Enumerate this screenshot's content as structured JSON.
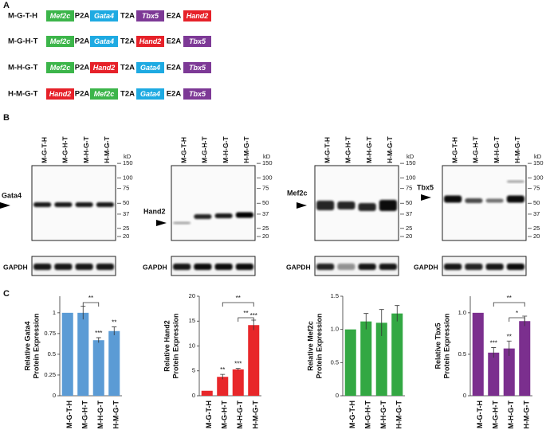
{
  "panel_labels": {
    "a": "A",
    "b": "B",
    "c": "C"
  },
  "constructs": {
    "gene_colors": {
      "Mef2c": "#3cb54a",
      "Gata4": "#1eaae2",
      "Hand2": "#e62129",
      "Tbx5": "#7d3996"
    },
    "linkers": [
      "P2A",
      "T2A",
      "E2A"
    ],
    "rows": [
      {
        "name": "M-G-T-H",
        "genes": [
          "Mef2c",
          "Gata4",
          "Tbx5",
          "Hand2"
        ]
      },
      {
        "name": "M-G-H-T",
        "genes": [
          "Mef2c",
          "Gata4",
          "Hand2",
          "Tbx5"
        ]
      },
      {
        "name": "M-H-G-T",
        "genes": [
          "Mef2c",
          "Hand2",
          "Gata4",
          "Tbx5"
        ]
      },
      {
        "name": "H-M-G-T",
        "genes": [
          "Hand2",
          "Mef2c",
          "Gata4",
          "Tbx5"
        ]
      }
    ]
  },
  "blots": {
    "lanes": [
      "M-G-T-H",
      "M-G-H-T",
      "M-H-G-T",
      "H-M-G-T"
    ],
    "unit": "kD",
    "loading_control": "GAPDH",
    "panels": [
      {
        "protein": "Gata4",
        "markers": [
          150,
          100,
          75,
          50,
          37,
          25,
          20
        ]
      },
      {
        "protein": "Hand2",
        "markers": [
          150,
          100,
          75,
          50,
          37,
          25,
          20
        ]
      },
      {
        "protein": "Mef2c",
        "markers": [
          150,
          100,
          75,
          50,
          37,
          25,
          20
        ]
      },
      {
        "protein": "Tbx5",
        "markers": [
          150,
          100,
          75,
          50,
          37,
          25,
          20
        ]
      }
    ]
  },
  "chart_data": [
    {
      "type": "bar",
      "y_label": [
        "Relative Gata4",
        "Protein Expression"
      ],
      "categories": [
        "M-G-T-H",
        "M-G-H-T",
        "M-H-G-T",
        "H-M-G-T"
      ],
      "values": [
        1.0,
        1.0,
        0.67,
        0.78
      ],
      "errors": [
        null,
        0.08,
        0.03,
        0.05
      ],
      "significance": [
        null,
        null,
        "***",
        "**"
      ],
      "comparisons": [
        {
          "between": [
            "M-G-H-T",
            "M-H-G-T"
          ],
          "label": "**"
        }
      ],
      "color": "#5b9bd5",
      "ylim": [
        0,
        1.2
      ],
      "yticks": [
        0,
        0.25,
        0.5,
        0.75,
        1
      ]
    },
    {
      "type": "bar",
      "y_label": [
        "Relative Hand2",
        "Protein Expression"
      ],
      "categories": [
        "M-G-T-H",
        "M-G-H-T",
        "M-H-G-T",
        "H-M-G-T"
      ],
      "values": [
        1.0,
        3.8,
        5.3,
        14.2
      ],
      "errors": [
        null,
        0.5,
        0.2,
        1.0
      ],
      "significance": [
        null,
        "**",
        "***",
        "***"
      ],
      "comparisons": [
        {
          "between": [
            "M-H-G-T",
            "H-M-G-T"
          ],
          "label": "**"
        },
        {
          "between": [
            "M-G-H-T",
            "H-M-G-T"
          ],
          "label": "**"
        }
      ],
      "color": "#e8272a",
      "ylim": [
        0,
        20
      ],
      "yticks": [
        0,
        5,
        10,
        15,
        20
      ]
    },
    {
      "type": "bar",
      "y_label": [
        "Relative Mef2c",
        "Protein Expression"
      ],
      "categories": [
        "M-G-T-H",
        "M-G-H-T",
        "M-H-G-T",
        "H-M-G-T"
      ],
      "values": [
        1.0,
        1.12,
        1.1,
        1.24
      ],
      "errors": [
        null,
        0.12,
        0.2,
        0.12
      ],
      "significance": [
        null,
        null,
        null,
        null
      ],
      "comparisons": [],
      "color": "#33a843",
      "ylim": [
        0,
        1.5
      ],
      "yticks": [
        0,
        0.5,
        {
          "value": 1,
          "label": "1.0"
        },
        1.5
      ]
    },
    {
      "type": "bar",
      "y_label": [
        "Relative Tbx5",
        "Protein Expression"
      ],
      "categories": [
        "M-G-T-H",
        "M-G-H-T",
        "M-H-G-T",
        "H-M-G-T"
      ],
      "values": [
        1.0,
        0.52,
        0.57,
        0.9
      ],
      "errors": [
        null,
        0.06,
        0.09,
        0.06
      ],
      "significance": [
        null,
        "***",
        "**",
        null
      ],
      "comparisons": [
        {
          "between": [
            "M-H-G-T",
            "H-M-G-T"
          ],
          "label": "*"
        },
        {
          "between": [
            "M-G-H-T",
            "H-M-G-T"
          ],
          "label": "**"
        }
      ],
      "color": "#7b2f8e",
      "ylim": [
        0,
        1.2
      ],
      "yticks": [
        0,
        0.5,
        {
          "value": 1,
          "label": "1.0"
        }
      ]
    }
  ]
}
